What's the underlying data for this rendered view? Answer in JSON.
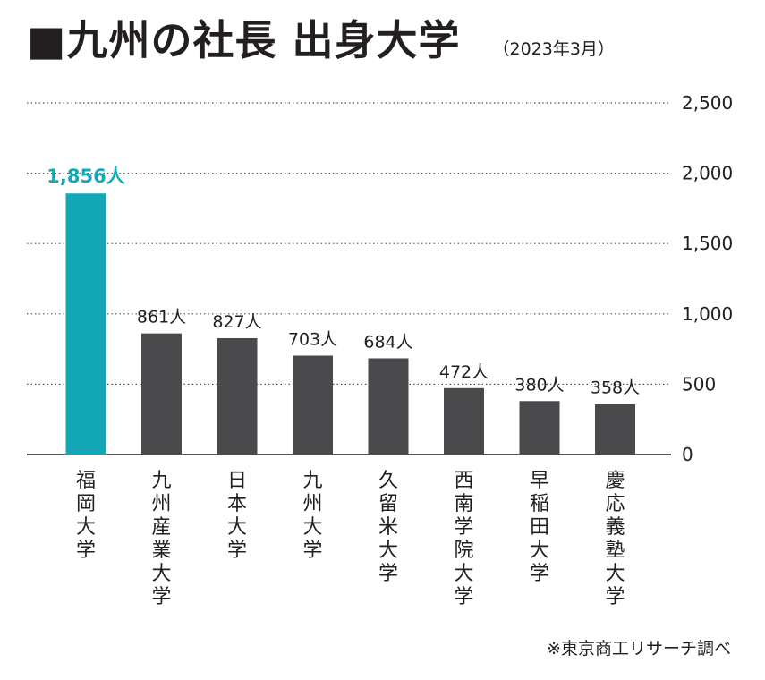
{
  "header": {
    "title": "■九州の社長 出身大学",
    "note": "（2023年3月）"
  },
  "source": "※東京商工リサーチ調べ",
  "colors": {
    "highlight": "#14a8b6",
    "bar": "#4a4a4d",
    "grid": "#555555",
    "text": "#231f20"
  },
  "chart_data": {
    "type": "bar",
    "categories": [
      "福岡大学",
      "九州産業大学",
      "日本大学",
      "九州大学",
      "久留米大学",
      "西南学院大学",
      "早稲田大学",
      "慶応義塾大学"
    ],
    "values": [
      1856,
      861,
      827,
      703,
      684,
      472,
      380,
      358
    ],
    "data_labels": [
      "1,856人",
      "861人",
      "827人",
      "703人",
      "684人",
      "472人",
      "380人",
      "358人"
    ],
    "highlight_index": 0,
    "ylim": [
      0,
      2500
    ],
    "yticks": [
      0,
      500,
      1000,
      1500,
      2000,
      2500
    ],
    "ytick_labels": [
      "0",
      "500",
      "1,000",
      "1,500",
      "2,000",
      "2,500"
    ],
    "grid": true,
    "title": "■九州の社長 出身大学",
    "xlabel": "",
    "ylabel": ""
  }
}
